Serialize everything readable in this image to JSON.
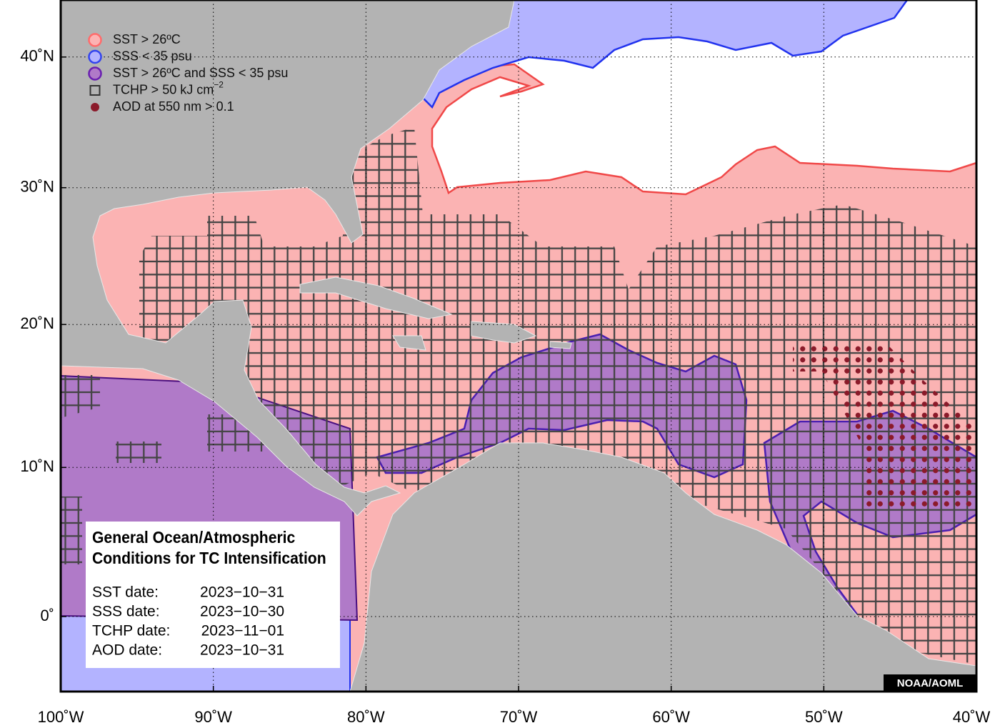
{
  "map": {
    "legend": [
      {
        "label": "SST > 26ºC",
        "color": "#ff6b6b",
        "fill": "#fbb3b3",
        "shape": "circle"
      },
      {
        "label": "SSS < 35 psu",
        "color": "#3344ee",
        "fill": "#b3b3ff",
        "shape": "circle"
      },
      {
        "label": "SST > 26ºC and SSS < 35 psu",
        "color": "#6a1fb0",
        "fill": "#b07ac8",
        "shape": "circle"
      },
      {
        "label": "TCHP > 50 kJ cm",
        "superscript": "−2",
        "color": "#333333",
        "fill": "none",
        "shape": "square"
      },
      {
        "label": "AOD at 550 nm > 0.1",
        "color": "#8b1a2a",
        "fill": "#8b1a2a",
        "shape": "dot"
      }
    ],
    "info_box": {
      "title_lines": [
        "General Ocean/Atmospheric",
        "Conditions for TC Intensification"
      ],
      "dates": [
        {
          "label": "SST date:",
          "value": "2023−10−31"
        },
        {
          "label": "SSS date:",
          "value": "2023−10−30"
        },
        {
          "label": "TCHP date:",
          "value": "2023−11−01"
        },
        {
          "label": "AOD date:",
          "value": "2023−10−31"
        }
      ]
    },
    "credit": "NOAA/AOML",
    "lon_ticks": [
      {
        "value": -100,
        "label": "100˚W"
      },
      {
        "value": -90,
        "label": "90˚W"
      },
      {
        "value": -80,
        "label": "80˚W"
      },
      {
        "value": -70,
        "label": "70˚W"
      },
      {
        "value": -60,
        "label": "60˚W"
      },
      {
        "value": -50,
        "label": "50˚W"
      },
      {
        "value": -40,
        "label": "40˚W"
      }
    ],
    "lat_ticks": [
      {
        "value": 0,
        "label": "0˚"
      },
      {
        "value": 10,
        "label": "10˚N"
      },
      {
        "value": 20,
        "label": "20˚N"
      },
      {
        "value": 30,
        "label": "30˚N"
      },
      {
        "value": 40,
        "label": "40˚N"
      }
    ],
    "grid": true
  }
}
